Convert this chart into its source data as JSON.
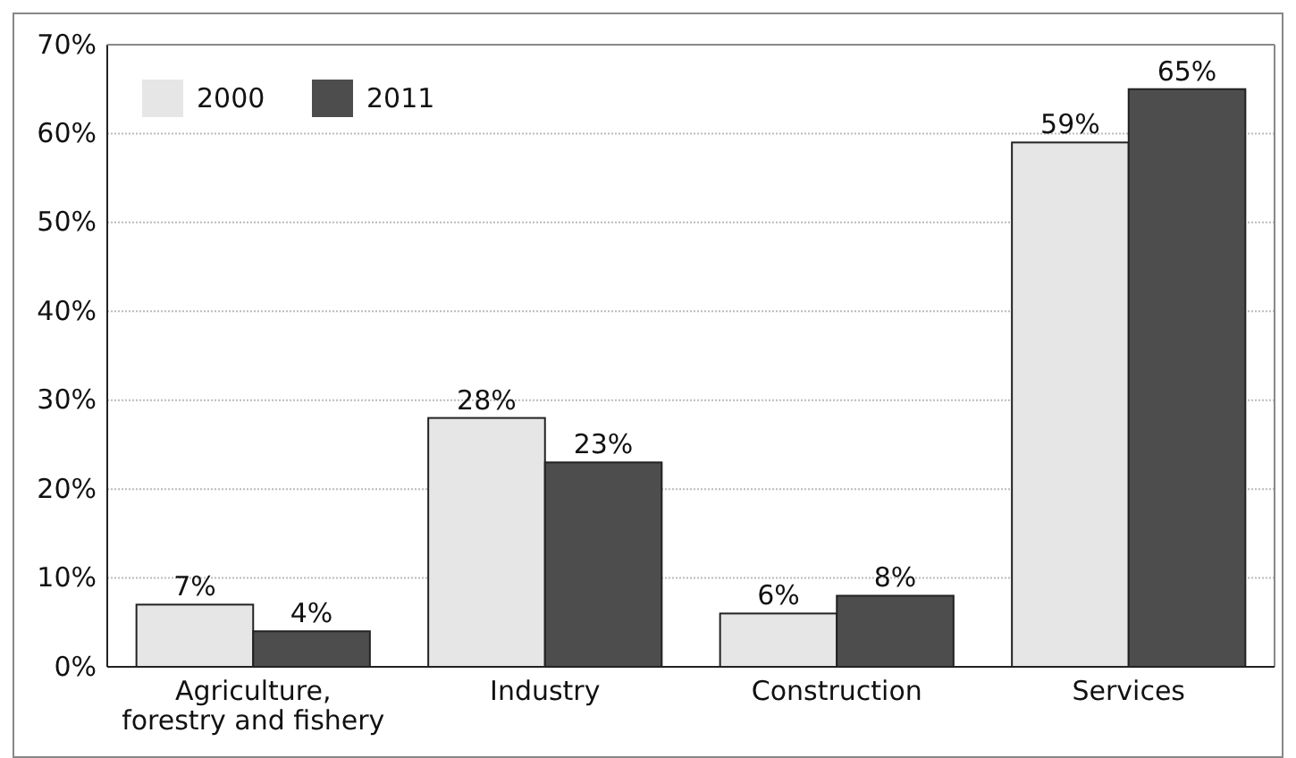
{
  "chart_data": {
    "type": "bar",
    "categories": [
      "Agriculture, forestry and fishery",
      "Industry",
      "Construction",
      "Services"
    ],
    "series": [
      {
        "name": "2000",
        "color": "#e6e6e6",
        "values": [
          7,
          28,
          6,
          59
        ],
        "value_labels": [
          "7%",
          "28%",
          "6%",
          "59%"
        ]
      },
      {
        "name": "2011",
        "color": "#4d4d4d",
        "values": [
          4,
          23,
          8,
          65
        ],
        "value_labels": [
          "4%",
          "23%",
          "8%",
          "65%"
        ]
      }
    ],
    "ylim": [
      0,
      70
    ],
    "yticks": [
      {
        "value": 0,
        "label": "0%"
      },
      {
        "value": 10,
        "label": "10%"
      },
      {
        "value": 20,
        "label": "20%"
      },
      {
        "value": 30,
        "label": "30%"
      },
      {
        "value": 40,
        "label": "40%"
      },
      {
        "value": 50,
        "label": "50%"
      },
      {
        "value": 60,
        "label": "60%"
      },
      {
        "value": 70,
        "label": "70%"
      }
    ],
    "grid": "y",
    "legend": "top left"
  }
}
